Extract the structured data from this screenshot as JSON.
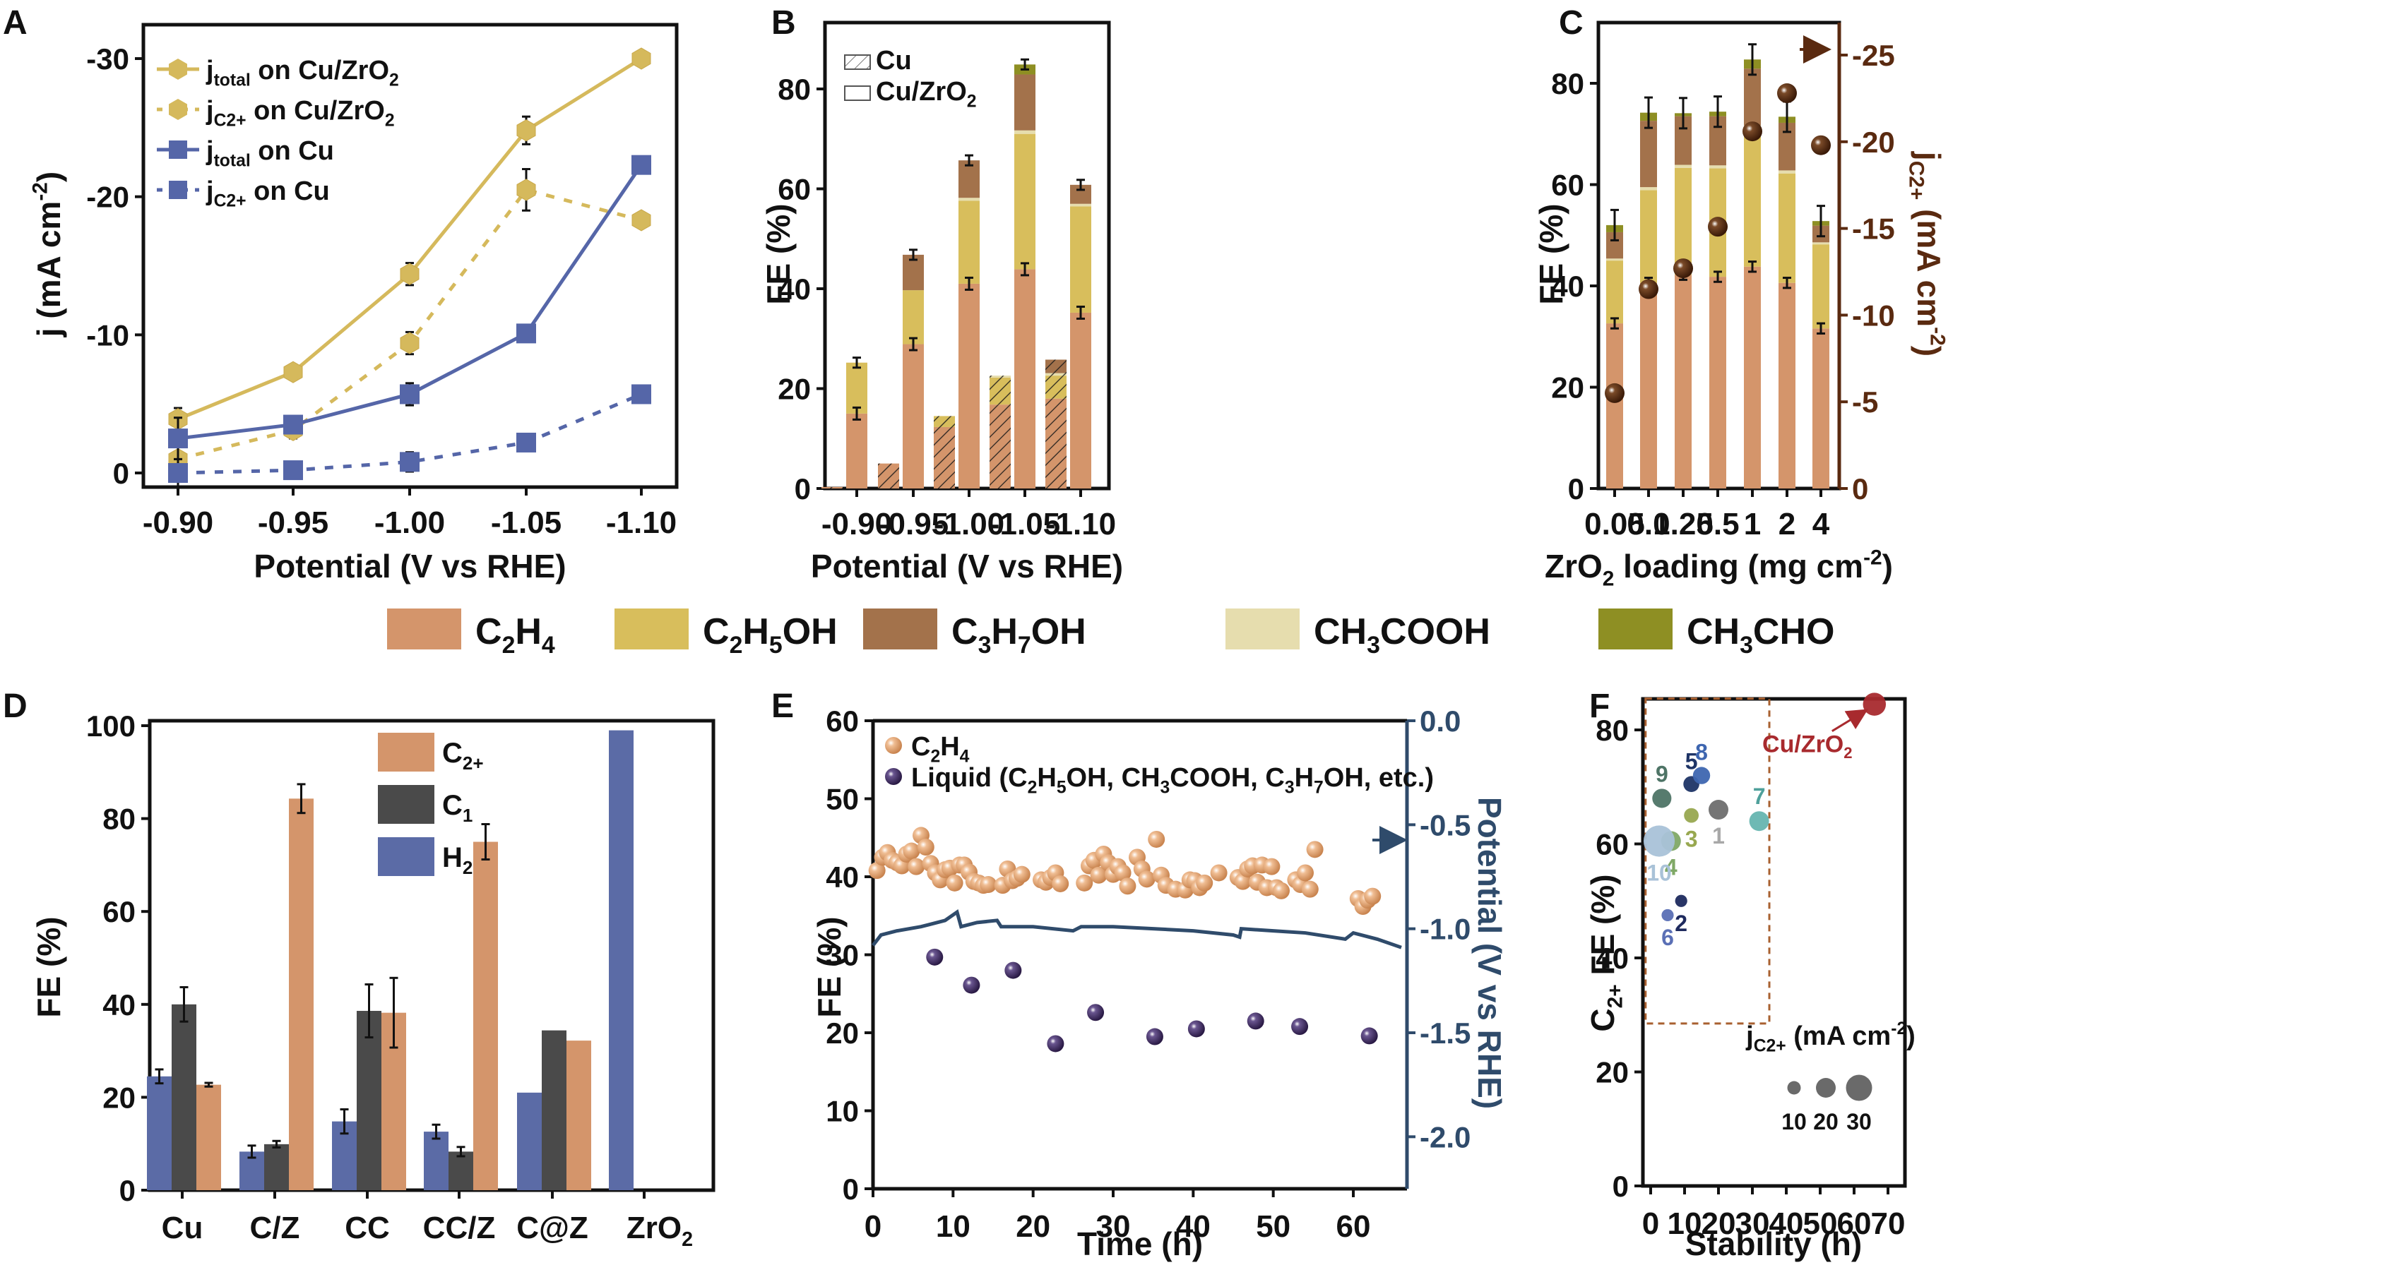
{
  "figure": {
    "panel_labels": [
      "A",
      "B",
      "C",
      "D",
      "E",
      "F"
    ]
  },
  "shared_legend": {
    "items": [
      {
        "label": "C2H4",
        "sub": [
          [
            "C",
            ""
          ],
          [
            "2",
            "sub"
          ],
          [
            "H",
            ""
          ],
          [
            "4",
            "sub"
          ]
        ],
        "color": "#D4956B"
      },
      {
        "label": "C2H5OH",
        "sub": [
          [
            "C",
            ""
          ],
          [
            "2",
            "sub"
          ],
          [
            "H",
            ""
          ],
          [
            "5",
            "sub"
          ],
          [
            "OH",
            ""
          ]
        ],
        "color": "#D8BE5C"
      },
      {
        "label": "C3H7OH",
        "sub": [
          [
            "C",
            ""
          ],
          [
            "3",
            "sub"
          ],
          [
            "H",
            ""
          ],
          [
            "7",
            "sub"
          ],
          [
            "OH",
            ""
          ]
        ],
        "color": "#A3724B"
      },
      {
        "label": "CH3COOH",
        "sub": [
          [
            "CH",
            ""
          ],
          [
            "3",
            "sub"
          ],
          [
            "COOH",
            ""
          ]
        ],
        "color": "#E6DDAE"
      },
      {
        "label": "CH3CHO",
        "sub": [
          [
            "CH",
            ""
          ],
          [
            "3",
            "sub"
          ],
          [
            "CHO",
            ""
          ]
        ],
        "color": "#8E8F23"
      }
    ]
  },
  "chart_data": [
    {
      "panel": "A",
      "type": "line",
      "xlabel": "Potential (V vs RHE)",
      "ylabel": "j (mA cm-2)",
      "x_categories": [
        "-0.90",
        "-0.95",
        "-1.00",
        "-1.05",
        "-1.10"
      ],
      "ylim": [
        0,
        -33
      ],
      "yticks": [
        0,
        -10,
        -20,
        -30
      ],
      "legend_position": "top-left",
      "series": [
        {
          "name": "jtotal on Cu/ZrO2",
          "marker": "hexagon",
          "dash": false,
          "color": "#D5B95C",
          "values": [
            -3.9,
            -7.3,
            -14.4,
            -24.8,
            -30.0
          ],
          "err": [
            0.8,
            0.5,
            0.8,
            1.0,
            0
          ]
        },
        {
          "name": "jC2+ on Cu/ZrO2",
          "marker": "hexagon",
          "dash": true,
          "color": "#D5B95C",
          "values": [
            -1.0,
            -3.1,
            -9.4,
            -20.5,
            -18.3
          ],
          "err": [
            0.3,
            0.6,
            0.8,
            1.5,
            0
          ]
        },
        {
          "name": "jtotal on Cu",
          "marker": "square",
          "dash": false,
          "color": "#5566A8",
          "values": [
            -2.5,
            -3.5,
            -5.7,
            -10.1,
            -22.3
          ],
          "err": [
            1.5,
            0.5,
            0.8,
            0.4,
            0
          ]
        },
        {
          "name": "jC2+ on Cu",
          "marker": "square",
          "dash": true,
          "color": "#5566A8",
          "values": [
            0.0,
            -0.2,
            -0.8,
            -2.2,
            -5.7
          ],
          "err": [
            1.0,
            0.3,
            0.7,
            0.5,
            0
          ]
        }
      ]
    },
    {
      "panel": "B",
      "type": "bar",
      "stacked": true,
      "xlabel": "Potential (V vs RHE)",
      "ylabel": "FE (%)",
      "categories": [
        "-0.90",
        "-0.95",
        "-1.00",
        "-1.05",
        "-1.10"
      ],
      "ylim": [
        0,
        86
      ],
      "yticks": [
        0,
        20,
        40,
        60,
        80
      ],
      "legend": [
        {
          "label": "Cu",
          "pattern": "hatched"
        },
        {
          "label": "Cu/ZrO2",
          "pattern": "plain"
        }
      ],
      "legend_position": "top-left",
      "series_names": [
        "C2H4",
        "C2H5OH",
        "CH3COOH",
        "C3H7OH",
        "CH3CHO"
      ],
      "Cu": [
        [
          0.3,
          0,
          0,
          0,
          0
        ],
        [
          5.0,
          0,
          0,
          0,
          0
        ],
        [
          12.3,
          2.2,
          0,
          0,
          0
        ],
        [
          16.8,
          5.4,
          0.4,
          0,
          0
        ],
        [
          18.0,
          4.6,
          0.5,
          2.7,
          0
        ]
      ],
      "Cu_ZrO2": [
        [
          15.0,
          10.2,
          0,
          0,
          0
        ],
        [
          28.9,
          10.8,
          0,
          7.1,
          0
        ],
        [
          41.0,
          16.6,
          0.6,
          7.5,
          0
        ],
        [
          43.9,
          27.1,
          0.7,
          11.2,
          2.0
        ],
        [
          35.2,
          21.3,
          0.5,
          3.8,
          0
        ]
      ]
    },
    {
      "panel": "C",
      "type": "bar",
      "stacked": true,
      "xlabel": "ZrO2 loading (mg cm-2)",
      "ylabel": "FE (%)",
      "ylabel_right": "jC2+ (mA cm-2)",
      "categories": [
        "0.05",
        "0.1",
        "0.25",
        "0.5",
        "1",
        "2",
        "4"
      ],
      "ylim": [
        0,
        86
      ],
      "yticks": [
        0,
        20,
        40,
        60,
        80
      ],
      "ylim_right": [
        0,
        -28
      ],
      "yticks_right": [
        0,
        -5,
        -10,
        -15,
        -20,
        -25
      ],
      "series_names": [
        "C2H4",
        "C2H5OH",
        "CH3COOH",
        "C3H7OH",
        "CH3CHO"
      ],
      "values": [
        [
          32.6,
          12.4,
          0.4,
          5.2,
          1.4
        ],
        [
          40.6,
          18.3,
          0.6,
          13.1,
          1.6
        ],
        [
          42.2,
          21.1,
          0.6,
          9.6,
          0.6
        ],
        [
          41.8,
          21.4,
          0.6,
          9.7,
          0.9
        ],
        [
          43.8,
          27.2,
          0.7,
          11.2,
          1.8
        ],
        [
          40.6,
          21.6,
          0.6,
          9.4,
          1.2
        ],
        [
          31.6,
          16.6,
          0.4,
          3.3,
          0.9
        ]
      ],
      "jC2+": [
        -5.5,
        -11.5,
        -12.7,
        -15.1,
        -20.6,
        -22.8,
        -19.8
      ]
    },
    {
      "panel": "D",
      "type": "bar",
      "xlabel": "",
      "ylabel": "FE (%)",
      "categories": [
        "Cu",
        "C/Z",
        "CC",
        "CC/Z",
        "C@Z",
        "ZrO2"
      ],
      "ylim": [
        0,
        100
      ],
      "yticks": [
        0,
        20,
        40,
        60,
        80,
        100
      ],
      "legend_position": "top-center",
      "series": [
        {
          "name": "H2",
          "color": "#5B6BA6",
          "values": [
            24.5,
            8.3,
            14.8,
            12.6,
            21.0,
            99.0
          ],
          "err": [
            1.5,
            1.3,
            2.6,
            1.5,
            0,
            0
          ]
        },
        {
          "name": "C1",
          "color": "#4A4A4A",
          "values": [
            40.0,
            9.9,
            38.6,
            8.3,
            34.4,
            0
          ],
          "err": [
            3.7,
            0.7,
            5.7,
            1.0,
            0,
            0
          ]
        },
        {
          "name": "C2+",
          "color": "#D4956B",
          "values": [
            22.7,
            84.3,
            38.2,
            75.0,
            32.2,
            0
          ],
          "err": [
            0.4,
            3.1,
            7.5,
            3.8,
            0,
            0
          ]
        }
      ],
      "legend_order": [
        "C2+",
        "C1",
        "H2"
      ]
    },
    {
      "panel": "E",
      "type": "scatter",
      "xlabel": "Time (h)",
      "ylabel": "FE (%)",
      "ylabel_right": "Potential (V vs RHE)",
      "xlim": [
        0,
        66
      ],
      "xticks": [
        0,
        10,
        20,
        30,
        40,
        50,
        60
      ],
      "ylim": [
        0,
        60
      ],
      "yticks": [
        0,
        10,
        20,
        30,
        40,
        50,
        60
      ],
      "ylim_right": [
        0.0,
        -2.25
      ],
      "yticks_right": [
        "0.0",
        "-0.5",
        "-1.0",
        "-1.5",
        "-2.0"
      ],
      "legend_position": "top-left",
      "series": [
        {
          "name": "C2H4",
          "color": "#E0A070",
          "x": [
            0.5,
            1.2,
            1.8,
            2.4,
            3.0,
            3.6,
            4.2,
            4.8,
            5.4,
            6.0,
            6.6,
            7.2,
            7.8,
            8.4,
            9.0,
            9.6,
            10.2,
            10.8,
            11.4,
            12.0,
            12.6,
            13.2,
            13.8,
            14.4,
            16.2,
            16.8,
            17.4,
            18.0,
            18.6,
            21.0,
            21.6,
            22.2,
            22.8,
            23.4,
            26.4,
            27.0,
            27.6,
            28.2,
            28.8,
            29.4,
            30.0,
            30.6,
            31.2,
            31.8,
            33.0,
            33.6,
            34.2,
            35.4,
            36.0,
            36.6,
            37.8,
            39.0,
            39.6,
            40.2,
            40.8,
            41.4,
            43.2,
            45.6,
            46.2,
            46.8,
            47.4,
            48.0,
            48.6,
            49.2,
            49.8,
            50.4,
            51.0,
            52.8,
            53.4,
            54.0,
            54.6,
            55.2,
            60.6,
            61.2,
            61.8,
            62.4
          ],
          "y": [
            40.8,
            42.5,
            43.1,
            42.1,
            41.8,
            41.4,
            42.9,
            43.3,
            41.3,
            45.3,
            43.8,
            41.7,
            40.5,
            39.6,
            40.9,
            41.1,
            39.2,
            41.5,
            41.5,
            40.6,
            39.4,
            39.2,
            38.9,
            39.0,
            38.9,
            41.0,
            39.5,
            39.8,
            40.3,
            39.6,
            39.3,
            39.9,
            40.5,
            39.1,
            39.2,
            41.4,
            42.1,
            40.2,
            42.9,
            41.8,
            40.3,
            41.3,
            40.5,
            38.8,
            42.5,
            41.0,
            39.7,
            44.8,
            40.2,
            38.9,
            38.4,
            38.3,
            39.6,
            39.5,
            38.6,
            39.2,
            40.5,
            39.9,
            39.4,
            41.0,
            41.4,
            39.3,
            41.5,
            38.6,
            41.3,
            38.6,
            38.2,
            39.6,
            39.0,
            40.5,
            38.4,
            43.5,
            37.2,
            36.2,
            37.0,
            37.5
          ]
        },
        {
          "name": "Liquid (C2H5OH, CH3COOH, C3H7OH, etc.)",
          "color": "#3E2B5C",
          "x": [
            7.7,
            12.3,
            17.5,
            22.8,
            27.8,
            35.2,
            40.4,
            47.8,
            53.3,
            62.0
          ],
          "y": [
            29.7,
            26.1,
            28.0,
            18.6,
            22.6,
            19.5,
            20.5,
            21.5,
            20.8,
            19.6
          ]
        }
      ],
      "potential_series": {
        "name": "Potential",
        "color": "#2F4B6B",
        "x": [
          0,
          1,
          3,
          6,
          7,
          9,
          10.5,
          11,
          13,
          15.5,
          16,
          20,
          25,
          26,
          30,
          35,
          40,
          45,
          45.8,
          46,
          50,
          54,
          59,
          60,
          63,
          66
        ],
        "y": [
          -1.08,
          -1.03,
          -1.01,
          -0.99,
          -0.98,
          -0.96,
          -0.92,
          -0.99,
          -0.97,
          -0.96,
          -0.99,
          -0.99,
          -1.01,
          -0.99,
          -0.99,
          -1.0,
          -1.01,
          -1.03,
          -1.04,
          -1.0,
          -1.01,
          -1.02,
          -1.05,
          -1.02,
          -1.05,
          -1.09
        ]
      },
      "arrow": "right"
    },
    {
      "panel": "F",
      "type": "scatter",
      "xlabel": "Stability (h)",
      "ylabel": "C2+ FE (%)",
      "xlim": [
        -2,
        75
      ],
      "xticks": [
        0,
        10,
        20,
        30,
        40,
        50,
        60,
        70
      ],
      "ylim": [
        0,
        88
      ],
      "yticks": [
        0,
        20,
        40,
        60,
        80
      ],
      "size_legend_title": "jC2+ (mA cm-2)",
      "size_legend": [
        10,
        20,
        30
      ],
      "highlight_box": {
        "x": [
          -1.5,
          35
        ],
        "y": [
          28.5,
          85.5
        ]
      },
      "points": [
        {
          "label": "1",
          "x": 20,
          "y": 66,
          "j": 20,
          "color": "#6E6E6E",
          "label_color": "#A8A8A8",
          "label_pos": "below"
        },
        {
          "label": "2",
          "x": 9,
          "y": 50,
          "j": 8,
          "color": "#1E2A5E",
          "label_color": "#1E2A5E",
          "label_pos": "below"
        },
        {
          "label": "3",
          "x": 12,
          "y": 65,
          "j": 12,
          "color": "#98A850",
          "label_color": "#98A850",
          "label_pos": "below"
        },
        {
          "label": "4",
          "x": 6,
          "y": 60.5,
          "j": 20,
          "color": "#7FA866",
          "label_color": "#7FA866",
          "label_pos": "below"
        },
        {
          "label": "5",
          "x": 12,
          "y": 70.5,
          "j": 14,
          "color": "#1E3466",
          "label_color": "#1E3466",
          "label_pos": "above"
        },
        {
          "label": "6",
          "x": 5,
          "y": 47.5,
          "j": 8,
          "color": "#5A6FB5",
          "label_color": "#5A6FB5",
          "label_pos": "below"
        },
        {
          "label": "7",
          "x": 32,
          "y": 64,
          "j": 20,
          "color": "#66B5B0",
          "label_color": "#4FA09B",
          "label_pos": "above"
        },
        {
          "label": "8",
          "x": 15,
          "y": 72,
          "j": 16,
          "color": "#3E66B0",
          "label_color": "#3E66B0",
          "label_pos": "above"
        },
        {
          "label": "9",
          "x": 3.3,
          "y": 68,
          "j": 19,
          "color": "#4E7466",
          "label_color": "#4E7466",
          "label_pos": "above"
        },
        {
          "label": "10",
          "x": 2.5,
          "y": 60.5,
          "j": 38,
          "color": "#A9C2D8",
          "label_color": "#A9C2D8",
          "label_pos": "below"
        },
        {
          "label": "Cu/ZrO2",
          "x": 66,
          "y": 84.5,
          "j": 25,
          "color": "#A82A2E",
          "label_color": "#A82A2E",
          "label_pos": "arrow"
        }
      ]
    }
  ]
}
